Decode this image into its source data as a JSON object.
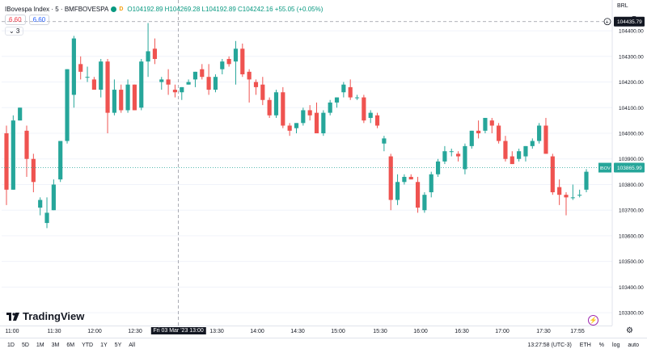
{
  "header": {
    "symbol": "IBovespa Index · 5 · BMFBOVESPA",
    "status_dot_color": "#089981",
    "badge": "D",
    "ohlc": "O104192.89 H104269.28 L104192.89 C104242.16 +55.05 (+0.05%)",
    "sell_price": "6.60",
    "buy_price": "6.60",
    "indicators_toggle": "⌄ 3",
    "currency": "BRL"
  },
  "branding": {
    "logo_text": "TradingView"
  },
  "crosshair": {
    "date_label": "Fri 03 Mar '23   13:00"
  },
  "price_labels": {
    "crosshair_price": "104435.79",
    "last_symbol": "IBOV",
    "last_price": "103865.99"
  },
  "bottom": {
    "ranges": [
      "1D",
      "5D",
      "1M",
      "3M",
      "6M",
      "YTD",
      "1Y",
      "5Y",
      "All"
    ],
    "time": "13:27:58 (UTC-3)",
    "session": "ETH",
    "pct": "%",
    "log": "log",
    "auto": "auto"
  },
  "chart_data": {
    "type": "candlestick",
    "interval": "5m",
    "ylim": [
      103250,
      104520
    ],
    "y_ticks": [
      "104400.00",
      "104300.00",
      "104200.00",
      "104100.00",
      "104000.00",
      "103900.00",
      "103800.00",
      "103700.00",
      "103600.00",
      "103500.00",
      "103400.00",
      "103300.00"
    ],
    "x_ticks": [
      "11:00",
      "11:30",
      "12:00",
      "12:30",
      "13:30",
      "14:00",
      "14:30",
      "15:00",
      "15:30",
      "16:00",
      "16:30",
      "17:00",
      "17:30",
      "17:55"
    ],
    "up_color": "#26a69a",
    "down_color": "#ef5350",
    "last_price": 103865.99,
    "candles": [
      [
        104000,
        104030,
        103720,
        103780
      ],
      [
        103780,
        104070,
        103780,
        104050
      ],
      [
        104050,
        104100,
        104050,
        104100
      ],
      [
        104010,
        104030,
        103830,
        103900
      ],
      [
        103900,
        103920,
        103770,
        103810
      ],
      [
        103710,
        103750,
        103680,
        103740
      ],
      [
        103650,
        103750,
        103630,
        103690
      ],
      [
        103700,
        103820,
        103700,
        103800
      ],
      [
        103820,
        103970,
        103810,
        103970
      ],
      [
        103970,
        104250,
        103960,
        104250
      ],
      [
        104150,
        104380,
        104100,
        104370
      ],
      [
        104270,
        104300,
        104210,
        104240
      ],
      [
        104220,
        104260,
        104200,
        104220
      ],
      [
        104210,
        104220,
        104170,
        104170
      ],
      [
        104170,
        104290,
        104140,
        104280
      ],
      [
        104280,
        104290,
        104000,
        104080
      ],
      [
        104080,
        104210,
        104070,
        104170
      ],
      [
        104170,
        104190,
        104080,
        104090
      ],
      [
        104090,
        104210,
        104080,
        104190
      ],
      [
        104190,
        104190,
        104090,
        104090
      ],
      [
        104100,
        104290,
        104090,
        104280
      ],
      [
        104280,
        104430,
        104220,
        104320
      ],
      [
        104330,
        104370,
        104270,
        104290
      ],
      [
        104200,
        104220,
        104170,
        104210
      ],
      [
        104210,
        104250,
        104150,
        104190
      ],
      [
        104170,
        104190,
        104140,
        104160
      ],
      [
        104160,
        104180,
        104130,
        104180
      ],
      [
        104190,
        104210,
        104190,
        104200
      ],
      [
        104210,
        104240,
        104180,
        104240
      ],
      [
        104250,
        104270,
        104210,
        104220
      ],
      [
        104220,
        104270,
        104150,
        104170
      ],
      [
        104170,
        104230,
        104160,
        104220
      ],
      [
        104250,
        104290,
        104230,
        104280
      ],
      [
        104290,
        104300,
        104260,
        104270
      ],
      [
        104280,
        104360,
        104190,
        104330
      ],
      [
        104330,
        104350,
        104220,
        104230
      ],
      [
        104240,
        104250,
        104120,
        104210
      ],
      [
        104200,
        104210,
        104150,
        104180
      ],
      [
        104190,
        104220,
        104110,
        104130
      ],
      [
        104130,
        104140,
        104060,
        104070
      ],
      [
        104070,
        104170,
        104060,
        104160
      ],
      [
        104160,
        104180,
        104020,
        104030
      ],
      [
        104030,
        104040,
        103990,
        104010
      ],
      [
        104020,
        104040,
        104000,
        104040
      ],
      [
        104040,
        104100,
        104030,
        104090
      ],
      [
        104090,
        104110,
        104050,
        104070
      ],
      [
        104080,
        104120,
        104000,
        104000
      ],
      [
        104000,
        104090,
        103990,
        104080
      ],
      [
        104080,
        104130,
        104070,
        104120
      ],
      [
        104120,
        104140,
        104100,
        104140
      ],
      [
        104160,
        104200,
        104140,
        104190
      ],
      [
        104180,
        104210,
        104130,
        104140
      ],
      [
        104140,
        104150,
        104130,
        104140
      ],
      [
        104140,
        104150,
        104040,
        104050
      ],
      [
        104060,
        104090,
        104040,
        104080
      ],
      [
        104070,
        104080,
        104020,
        104030
      ],
      [
        103960,
        103990,
        103930,
        103980
      ],
      [
        103910,
        103920,
        103700,
        103740
      ],
      [
        103740,
        103840,
        103720,
        103810
      ],
      [
        103810,
        103840,
        103800,
        103830
      ],
      [
        103830,
        103840,
        103820,
        103820
      ],
      [
        103810,
        103830,
        103690,
        103710
      ],
      [
        103700,
        103770,
        103690,
        103760
      ],
      [
        103770,
        103850,
        103750,
        103840
      ],
      [
        103840,
        103900,
        103830,
        103890
      ],
      [
        103890,
        103950,
        103880,
        103930
      ],
      [
        103930,
        103940,
        103910,
        103930
      ],
      [
        103920,
        103930,
        103890,
        103910
      ],
      [
        103860,
        103960,
        103840,
        103950
      ],
      [
        103950,
        104010,
        103940,
        104010
      ],
      [
        104010,
        104050,
        103980,
        104000
      ],
      [
        104010,
        104060,
        104000,
        104060
      ],
      [
        104050,
        104060,
        104000,
        104030
      ],
      [
        104030,
        104040,
        103960,
        103970
      ],
      [
        103970,
        103990,
        103890,
        103900
      ],
      [
        103910,
        103930,
        103880,
        103880
      ],
      [
        103900,
        103940,
        103890,
        103930
      ],
      [
        103910,
        103950,
        103890,
        103950
      ],
      [
        103950,
        103980,
        103940,
        103970
      ],
      [
        103970,
        104040,
        103960,
        104030
      ],
      [
        104030,
        104060,
        103920,
        103920
      ],
      [
        103910,
        103920,
        103760,
        103770
      ],
      [
        103790,
        103820,
        103720,
        103760
      ],
      [
        103760,
        103770,
        103680,
        103750
      ],
      [
        103750,
        103800,
        103740,
        103750
      ],
      [
        103760,
        103780,
        103750,
        103760
      ],
      [
        103780,
        103860,
        103770,
        103850
      ]
    ]
  }
}
